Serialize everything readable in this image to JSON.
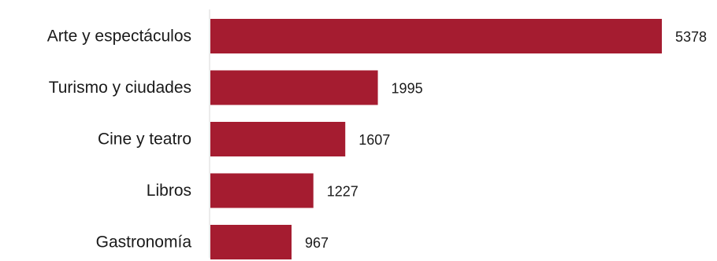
{
  "chart_data": {
    "type": "bar",
    "orientation": "horizontal",
    "categories": [
      "Arte y espectáculos",
      "Turismo y ciudades",
      "Cine y teatro",
      "Libros",
      "Gastronomía"
    ],
    "values": [
      5378,
      1995,
      1607,
      1227,
      967
    ],
    "data_labels": [
      "5378",
      "1995",
      "1607",
      "1227",
      "967"
    ],
    "title": "",
    "xlabel": "",
    "ylabel": "",
    "xlim": [
      0,
      5378
    ],
    "grid": false,
    "legend": "none",
    "bar_color": "#a51c30",
    "axis_color": "#d9d9d9"
  }
}
